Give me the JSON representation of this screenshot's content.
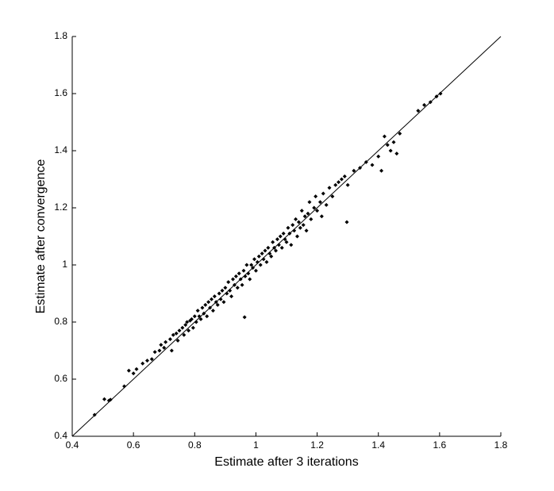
{
  "chart_data": {
    "type": "scatter",
    "x_label": "Estimate after 3 iterations",
    "y_label": "Estimate after convergence",
    "xlim": [
      0.4,
      1.8
    ],
    "ylim": [
      0.4,
      1.8
    ],
    "xticks": [
      0.4,
      0.6,
      0.8,
      1,
      1.2,
      1.4,
      1.6,
      1.8
    ],
    "yticks": [
      0.4,
      0.6,
      0.8,
      1,
      1.2,
      1.4,
      1.6,
      1.8
    ],
    "grid": false,
    "reference_line": {
      "x": [
        0.4,
        1.8
      ],
      "y": [
        0.4,
        1.8
      ],
      "color": "#000000"
    },
    "series": [
      {
        "color": "#000000",
        "x": [
          0.473,
          0.505,
          0.52,
          0.525,
          0.57,
          0.585,
          0.6,
          0.61,
          0.63,
          0.645,
          0.66,
          0.67,
          0.685,
          0.69,
          0.7,
          0.705,
          0.72,
          0.725,
          0.73,
          0.74,
          0.745,
          0.75,
          0.76,
          0.765,
          0.77,
          0.775,
          0.78,
          0.785,
          0.79,
          0.795,
          0.8,
          0.805,
          0.81,
          0.815,
          0.82,
          0.825,
          0.83,
          0.835,
          0.84,
          0.845,
          0.85,
          0.855,
          0.86,
          0.865,
          0.87,
          0.875,
          0.88,
          0.885,
          0.89,
          0.895,
          0.9,
          0.905,
          0.91,
          0.915,
          0.92,
          0.925,
          0.93,
          0.935,
          0.94,
          0.945,
          0.95,
          0.955,
          0.96,
          0.963,
          0.965,
          0.97,
          0.975,
          0.98,
          0.985,
          0.99,
          0.995,
          1.0,
          1.005,
          1.01,
          1.015,
          1.02,
          1.025,
          1.03,
          1.035,
          1.04,
          1.045,
          1.05,
          1.055,
          1.06,
          1.065,
          1.07,
          1.075,
          1.08,
          1.085,
          1.09,
          1.095,
          1.1,
          1.105,
          1.11,
          1.115,
          1.12,
          1.125,
          1.13,
          1.135,
          1.14,
          1.145,
          1.15,
          1.155,
          1.16,
          1.165,
          1.17,
          1.175,
          1.18,
          1.19,
          1.195,
          1.2,
          1.21,
          1.215,
          1.22,
          1.23,
          1.24,
          1.25,
          1.26,
          1.27,
          1.28,
          1.29,
          1.297,
          1.3,
          1.32,
          1.34,
          1.36,
          1.38,
          1.4,
          1.41,
          1.42,
          1.43,
          1.44,
          1.45,
          1.46,
          1.47,
          1.53,
          1.55,
          1.57,
          1.59,
          1.603
        ],
        "y": [
          0.475,
          0.53,
          0.525,
          0.528,
          0.575,
          0.63,
          0.62,
          0.635,
          0.655,
          0.665,
          0.67,
          0.695,
          0.7,
          0.72,
          0.71,
          0.73,
          0.74,
          0.7,
          0.755,
          0.76,
          0.735,
          0.77,
          0.78,
          0.755,
          0.79,
          0.8,
          0.77,
          0.805,
          0.81,
          0.78,
          0.82,
          0.8,
          0.84,
          0.82,
          0.81,
          0.85,
          0.83,
          0.86,
          0.82,
          0.87,
          0.85,
          0.88,
          0.84,
          0.89,
          0.87,
          0.86,
          0.9,
          0.88,
          0.91,
          0.87,
          0.92,
          0.9,
          0.94,
          0.91,
          0.89,
          0.95,
          0.93,
          0.96,
          0.92,
          0.97,
          0.95,
          0.93,
          0.98,
          0.817,
          0.96,
          1.0,
          0.97,
          0.95,
          1.0,
          0.99,
          1.02,
          0.98,
          1.01,
          1.03,
          1.0,
          1.04,
          1.02,
          1.05,
          1.01,
          1.06,
          1.04,
          1.03,
          1.08,
          1.06,
          1.05,
          1.09,
          1.07,
          1.1,
          1.06,
          1.11,
          1.09,
          1.08,
          1.13,
          1.11,
          1.07,
          1.14,
          1.12,
          1.16,
          1.1,
          1.15,
          1.13,
          1.19,
          1.14,
          1.17,
          1.12,
          1.18,
          1.22,
          1.16,
          1.2,
          1.24,
          1.19,
          1.22,
          1.17,
          1.25,
          1.21,
          1.27,
          1.24,
          1.28,
          1.29,
          1.3,
          1.31,
          1.15,
          1.28,
          1.33,
          1.34,
          1.36,
          1.35,
          1.38,
          1.33,
          1.45,
          1.42,
          1.4,
          1.43,
          1.39,
          1.46,
          1.54,
          1.56,
          1.57,
          1.59,
          1.6
        ]
      }
    ]
  }
}
